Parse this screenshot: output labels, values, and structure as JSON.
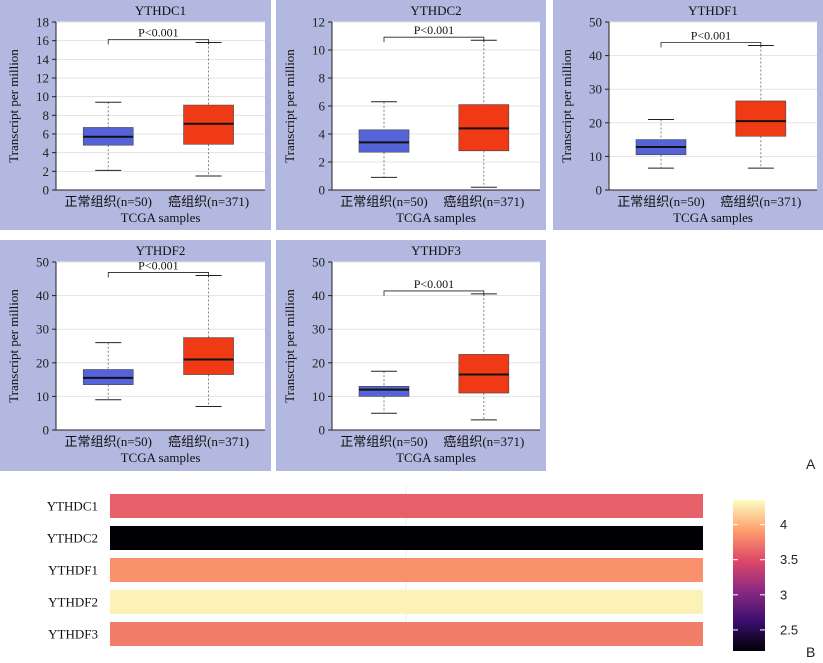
{
  "panel_labels": {
    "a": "A",
    "b": "B"
  },
  "chart_data": [
    {
      "type": "box",
      "title": "YTHDC1",
      "xlabel": "TCGA samples",
      "ylabel": "Transcript per million",
      "ylim": [
        0,
        18
      ],
      "yticks": [
        0,
        2,
        4,
        6,
        8,
        10,
        12,
        14,
        16,
        18
      ],
      "significance": "P<0.001",
      "groups": [
        {
          "label": "正常组织(n=50)",
          "color": "#5563d9",
          "min": 2.1,
          "q1": 4.8,
          "median": 5.7,
          "q3": 6.7,
          "max": 9.4
        },
        {
          "label": "癌组织(n=371)",
          "color": "#f03a16",
          "min": 1.5,
          "q1": 4.9,
          "median": 7.1,
          "q3": 9.1,
          "max": 15.8
        }
      ]
    },
    {
      "type": "box",
      "title": "YTHDC2",
      "xlabel": "TCGA samples",
      "ylabel": "Transcript per million",
      "ylim": [
        0,
        12
      ],
      "yticks": [
        0,
        2,
        4,
        6,
        8,
        10,
        12
      ],
      "significance": "P<0.001",
      "groups": [
        {
          "label": "正常组织(n=50)",
          "color": "#5563d9",
          "min": 0.9,
          "q1": 2.7,
          "median": 3.4,
          "q3": 4.3,
          "max": 6.3
        },
        {
          "label": "癌组织(n=371)",
          "color": "#f03a16",
          "min": 0.2,
          "q1": 2.8,
          "median": 4.4,
          "q3": 6.1,
          "max": 10.7
        }
      ]
    },
    {
      "type": "box",
      "title": "YTHDF1",
      "xlabel": "TCGA samples",
      "ylabel": "Transcript per million",
      "ylim": [
        0,
        50
      ],
      "yticks": [
        0,
        10,
        20,
        30,
        40,
        50
      ],
      "significance": "P<0.001",
      "groups": [
        {
          "label": "正常组织(n=50)",
          "color": "#5563d9",
          "min": 6.5,
          "q1": 10.5,
          "median": 12.8,
          "q3": 15.0,
          "max": 21.0
        },
        {
          "label": "癌组织(n=371)",
          "color": "#f03a16",
          "min": 6.5,
          "q1": 16.0,
          "median": 20.5,
          "q3": 26.5,
          "max": 43.0
        }
      ]
    },
    {
      "type": "box",
      "title": "YTHDF2",
      "xlabel": "TCGA samples",
      "ylabel": "Transcript per million",
      "ylim": [
        0,
        50
      ],
      "yticks": [
        0,
        10,
        20,
        30,
        40,
        50
      ],
      "significance": "P<0.001",
      "groups": [
        {
          "label": "正常组织(n=50)",
          "color": "#5563d9",
          "min": 9.0,
          "q1": 13.5,
          "median": 15.5,
          "q3": 18.0,
          "max": 26.0
        },
        {
          "label": "癌组织(n=371)",
          "color": "#f03a16",
          "min": 7.0,
          "q1": 16.5,
          "median": 21.0,
          "q3": 27.5,
          "max": 46.0
        }
      ]
    },
    {
      "type": "box",
      "title": "YTHDF3",
      "xlabel": "TCGA samples",
      "ylabel": "Transcript per million",
      "ylim": [
        0,
        50
      ],
      "yticks": [
        0,
        10,
        20,
        30,
        40,
        50
      ],
      "significance": "P<0.001",
      "groups": [
        {
          "label": "正常组织(n=50)",
          "color": "#5563d9",
          "min": 5.0,
          "q1": 10.0,
          "median": 12.0,
          "q3": 13.0,
          "max": 17.5
        },
        {
          "label": "癌组织(n=371)",
          "color": "#f03a16",
          "min": 3.0,
          "q1": 11.0,
          "median": 16.5,
          "q3": 22.5,
          "max": 40.5
        }
      ]
    },
    {
      "type": "heatmap",
      "rows": [
        "YTHDC1",
        "YTHDC2",
        "YTHDF1",
        "YTHDF2",
        "YTHDF3"
      ],
      "values": [
        3.6,
        2.2,
        3.85,
        4.3,
        3.75
      ],
      "colorbar": {
        "min": 2.2,
        "max": 4.35,
        "ticks": [
          2.5,
          3,
          3.5,
          4
        ]
      },
      "colormap": [
        "#000004",
        "#3b0f70",
        "#8c2981",
        "#de4968",
        "#fe9f6d",
        "#fcfdbf"
      ]
    }
  ]
}
